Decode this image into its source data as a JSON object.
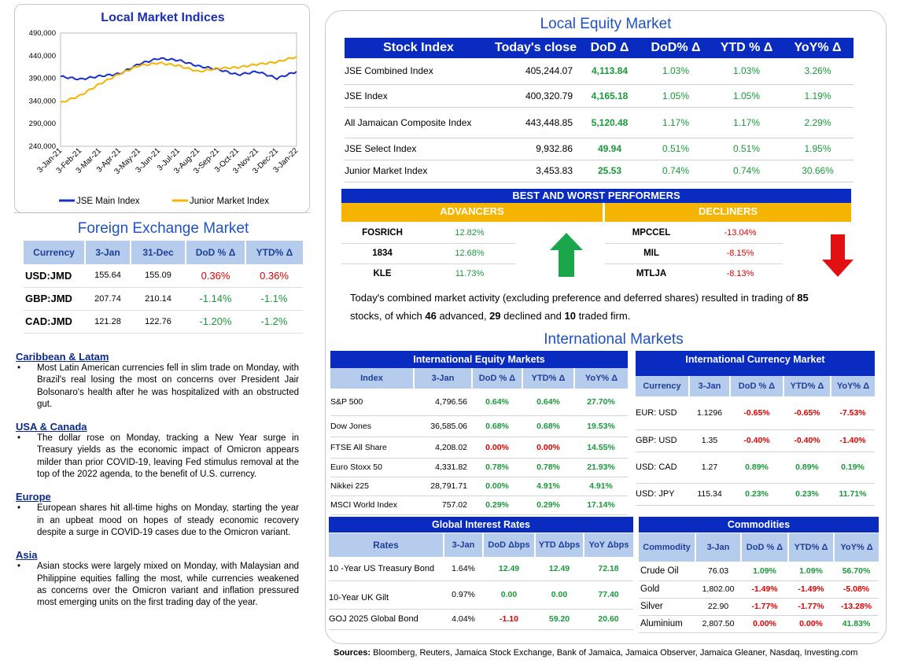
{
  "chart_data": {
    "type": "line",
    "title": "Local Market Indices",
    "x": [
      "3-Jan-21",
      "3-Feb-21",
      "3-Mar-21",
      "3-Apr-21",
      "3-May-21",
      "3-Jun-21",
      "3-Jul-21",
      "3-Aug-21",
      "3-Sep-21",
      "3-Oct-21",
      "3-Nov-21",
      "3-Dec-21",
      "3-Jan-22"
    ],
    "ylim": [
      240000,
      490000
    ],
    "yticks": [
      "490,000",
      "440,000",
      "390,000",
      "340,000",
      "290,000",
      "240,000"
    ],
    "legend_position": "bottom",
    "series": [
      {
        "name": "JSE Main Index",
        "color": "#1a2fd0",
        "values": [
          394000,
          388000,
          395000,
          400000,
          422000,
          434000,
          430000,
          417000,
          410000,
          398000,
          405000,
          390000,
          405000
        ]
      },
      {
        "name": "Junior Market Index",
        "color": "#f4b400",
        "values": [
          336000,
          352000,
          378000,
          400000,
          418000,
          424000,
          418000,
          405000,
          412000,
          414000,
          421000,
          426000,
          438000
        ]
      }
    ]
  },
  "fx": {
    "title": "Foreign Exchange Market",
    "headers": [
      "Currency",
      "3-Jan",
      "31-Dec",
      "DoD % Δ",
      "YTD% Δ"
    ],
    "rows": [
      {
        "c": "USD:JMD",
        "a": "155.64",
        "b": "155.09",
        "d": "0.36%",
        "y": "0.36%"
      },
      {
        "c": "GBP:JMD",
        "a": "207.74",
        "b": "210.14",
        "d": "-1.14%",
        "y": "-1.1%"
      },
      {
        "c": "CAD:JMD",
        "a": "121.28",
        "b": "122.76",
        "d": "-1.20%",
        "y": "-1.2%"
      }
    ]
  },
  "news": [
    {
      "head": "Caribbean & Latam",
      "body": "Most Latin American currencies fell in slim trade on Monday, with Brazil's real losing the most on concerns over President Jair Bolsonaro's health after he was hospitalized with an obstructed gut."
    },
    {
      "head": "USA & Canada",
      "body": "The dollar rose on Monday, tracking a New Year surge in Treasury yields as the economic impact of Omicron appears milder than prior COVID-19, leaving Fed stimulus removal at the top of the 2022 agenda, to the benefit of U.S. currency."
    },
    {
      "head": "Europe",
      "body": "European shares hit all-time highs on Monday, starting the year in an upbeat mood on hopes of steady economic recovery despite a surge in COVID-19 cases due to the Omicron variant."
    },
    {
      "head": "Asia",
      "body": "Asian stocks were largely mixed on Monday, with Malaysian and Philippine equities falling the most, while currencies weakened as concerns over the Omicron variant and inflation pressured most emerging units on the first trading day of the year."
    }
  ],
  "equity": {
    "title": "Local Equity Market",
    "headers": [
      "Stock Index",
      "Today's close",
      "DoD  Δ",
      "DoD% Δ",
      "YTD % Δ",
      "YoY% Δ"
    ],
    "rows": [
      {
        "n": "JSE Combined Index",
        "c": "405,244.07",
        "d": "4,113.84",
        "dp": "1.03%",
        "y": "1.03%",
        "yy": "3.26%"
      },
      {
        "n": "JSE Index",
        "c": "400,320.79",
        "d": "4,165.18",
        "dp": "1.05%",
        "y": "1.05%",
        "yy": "1.19%"
      },
      {
        "n": "All Jamaican Composite Index",
        "c": "443,448.85",
        "d": "5,120.48",
        "dp": "1.17%",
        "y": "1.17%",
        "yy": "2.29%"
      },
      {
        "n": "JSE Select Index",
        "c": "9,932.86",
        "d": "49.94",
        "dp": "0.51%",
        "y": "0.51%",
        "yy": "1.95%"
      },
      {
        "n": "Junior Market Index",
        "c": "3,453.83",
        "d": "25.53",
        "dp": "0.74%",
        "y": "0.74%",
        "yy": "30.66%"
      }
    ]
  },
  "performers": {
    "title": "BEST AND WORST PERFORMERS",
    "advancers_label": "ADVANCERS",
    "decliners_label": "DECLINERS",
    "advancers": [
      {
        "n": "FOSRICH",
        "v": "12.82%"
      },
      {
        "n": "1834",
        "v": "12.68%"
      },
      {
        "n": "KLE",
        "v": "11.73%"
      }
    ],
    "decliners": [
      {
        "n": "MPCCEL",
        "v": "-13.04%"
      },
      {
        "n": "MIL",
        "v": "-8.15%"
      },
      {
        "n": "MTLJA",
        "v": "-8.13%"
      }
    ]
  },
  "summary": {
    "t1": "Today's combined market activity (excluding preference and deferred shares) resulted in trading of ",
    "n1": "85",
    "t2": "stocks, of which ",
    "n2": "46",
    "t3": " advanced, ",
    "n3": "29",
    "t4": " declined and ",
    "n4": "10",
    "t5": " traded firm."
  },
  "intl_title": "International Markets",
  "intl_equity": {
    "title": "International Equity Markets",
    "headers": [
      "Index",
      "3-Jan",
      "DoD % Δ",
      "YTD% Δ",
      "YoY% Δ"
    ],
    "rows": [
      {
        "n": "S&P 500",
        "v": "4,796.56",
        "d": "0.64%",
        "y": "0.64%",
        "yy": "27.70%"
      },
      {
        "n": "Dow Jones",
        "v": "36,585.06",
        "d": "0.68%",
        "y": "0.68%",
        "yy": "19.53%"
      },
      {
        "n": "FTSE All Share",
        "v": "4,208.02",
        "d": "0.00%",
        "y": "0.00%",
        "yy": "14.55%"
      },
      {
        "n": "Euro Stoxx 50",
        "v": "4,331.82",
        "d": "0.78%",
        "y": "0.78%",
        "yy": "21.93%"
      },
      {
        "n": "Nikkei 225",
        "v": "28,791.71",
        "d": "0.00%",
        "y": "4.91%",
        "yy": "4.91%"
      },
      {
        "n": "MSCI World Index",
        "v": "757.02",
        "d": "0.29%",
        "y": "0.29%",
        "yy": "17.14%"
      }
    ]
  },
  "intl_currency": {
    "title": "International Currency Market",
    "headers": [
      "Currency",
      "3-Jan",
      "DoD % Δ",
      "YTD% Δ",
      "YoY% Δ"
    ],
    "rows": [
      {
        "n": "EUR: USD",
        "v": "1.1296",
        "d": "-0.65%",
        "y": "-0.65%",
        "yy": "-7.53%"
      },
      {
        "n": "GBP: USD",
        "v": "1.35",
        "d": "-0.40%",
        "y": "-0.40%",
        "yy": "-1.40%"
      },
      {
        "n": "USD: CAD",
        "v": "1.27",
        "d": "0.89%",
        "y": "0.89%",
        "yy": "0.19%"
      },
      {
        "n": "USD: JPY",
        "v": "115.34",
        "d": "0.23%",
        "y": "0.23%",
        "yy": "11.71%"
      }
    ]
  },
  "rates": {
    "title": "Global Interest Rates",
    "headers": [
      "Rates",
      "3-Jan",
      "DoD Δbps",
      "YTD Δbps",
      "YoY Δbps"
    ],
    "rows": [
      {
        "n": "10 -Year US Treasury Bond",
        "v": "1.64%",
        "d": "12.49",
        "y": "12.49",
        "yy": "72.18"
      },
      {
        "n": "10-Year UK Gilt",
        "v": "0.97%",
        "d": "0.00",
        "y": "0.00",
        "yy": "77.40"
      },
      {
        "n": "GOJ 2025 Global Bond",
        "v": "4.04%",
        "d": "-1.10",
        "y": "59.20",
        "yy": "20.60"
      }
    ]
  },
  "commodities": {
    "title": "Commodities",
    "headers": [
      "Commodity",
      "3-Jan",
      "DoD % Δ",
      "YTD% Δ",
      "YoY% Δ"
    ],
    "rows": [
      {
        "n": "Crude Oil",
        "v": "76.03",
        "d": "1.09%",
        "y": "1.09%",
        "yy": "56.70%"
      },
      {
        "n": "Gold",
        "v": "1,802.00",
        "d": "-1.49%",
        "y": "-1.49%",
        "yy": "-5.08%"
      },
      {
        "n": "Silver",
        "v": "22.90",
        "d": "-1.77%",
        "y": "-1.77%",
        "yy": "-13.28%"
      },
      {
        "n": "Aluminium",
        "v": "2,807.50",
        "d": "0.00%",
        "y": "0.00%",
        "yy": "41.83%"
      }
    ]
  },
  "sources": {
    "label": "Sources:",
    "text": " Bloomberg, Reuters, Jamaica Stock Exchange, Bank of Jamaica, Jamaica Observer, Jamaica Gleaner, Nasdaq, Investing.com"
  },
  "colors": {
    "accent": "#0a2bbf",
    "positive": "#1a9a3a",
    "negative": "#e00000",
    "header_light": "#b6ccec",
    "gold": "#f4b400"
  }
}
